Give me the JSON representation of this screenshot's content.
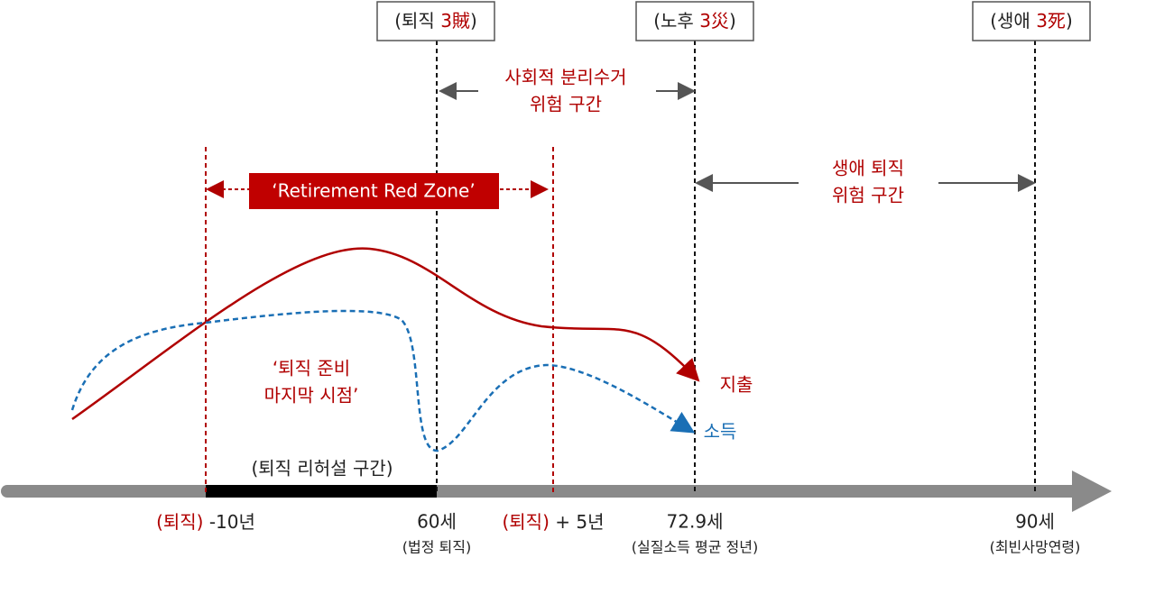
{
  "top_boxes": [
    {
      "pre": "(퇴직 ",
      "em": "3賊",
      "post": ")"
    },
    {
      "pre": "(노후 ",
      "em": "3災",
      "post": ")"
    },
    {
      "pre": "(생애 ",
      "em": "3死",
      "post": ")"
    }
  ],
  "zones": {
    "social": [
      "사회적 분리수거",
      "위험 구간"
    ],
    "life": [
      "생애 퇴직",
      "위험 구간"
    ],
    "red_zone": "‘Retirement Red Zone’",
    "last_point": [
      "‘퇴직 준비",
      "마지막 시점’"
    ],
    "rehearsal": "(퇴직 리허설 구간)"
  },
  "curves": {
    "spending": "지출",
    "income": "소득"
  },
  "axis_labels": [
    {
      "em": "(퇴직)",
      "text": " -10년"
    },
    {
      "text": "60세",
      "sub": "(법정 퇴직)"
    },
    {
      "em": "(퇴직)",
      "text": " + 5년"
    },
    {
      "text": "72.9세",
      "sub": "(실질소득 평균 정년)"
    },
    {
      "text": "90세",
      "sub": "(최빈사망연령)"
    }
  ]
}
